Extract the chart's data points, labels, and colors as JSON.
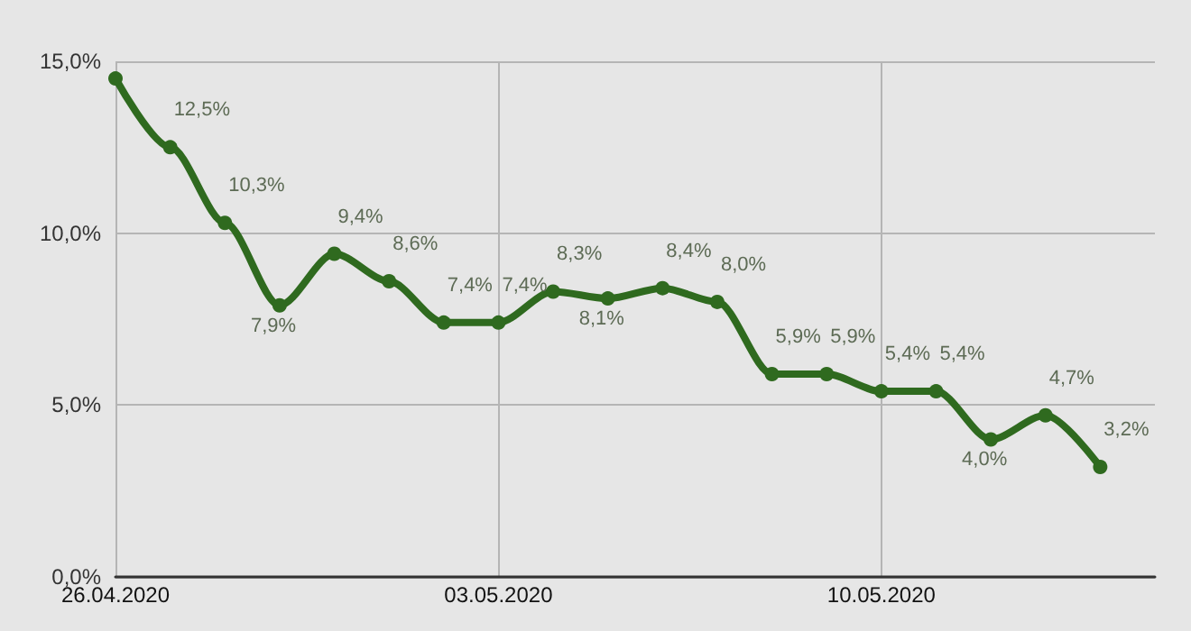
{
  "chart_data": {
    "type": "line",
    "x": [
      "2020-04-26",
      "2020-04-27",
      "2020-04-28",
      "2020-04-29",
      "2020-04-30",
      "2020-05-01",
      "2020-05-02",
      "2020-05-03",
      "2020-05-04",
      "2020-05-05",
      "2020-05-06",
      "2020-05-07",
      "2020-05-08",
      "2020-05-09",
      "2020-05-10",
      "2020-05-11",
      "2020-05-12",
      "2020-05-13",
      "2020-05-14"
    ],
    "series": [
      {
        "color": "#2f6a1f",
        "values": [
          14.5,
          12.5,
          10.3,
          7.9,
          9.4,
          8.6,
          7.4,
          7.4,
          8.3,
          8.1,
          8.4,
          8.0,
          5.9,
          5.9,
          5.4,
          5.4,
          4.0,
          4.7,
          3.2
        ],
        "value_labels": [
          null,
          "12,5%",
          "10,3%",
          "7,9%",
          "9,4%",
          "8,6%",
          "7,4%",
          "7,4%",
          "8,3%",
          "8,1%",
          "8,4%",
          "8,0%",
          "5,9%",
          "5,9%",
          "5,4%",
          "5,4%",
          "4,0%",
          "4,7%",
          "3,2%"
        ]
      }
    ],
    "xlim": [
      "2020-04-26",
      "2020-05-15"
    ],
    "xticks": [
      {
        "value": "2020-04-26",
        "label": "26.04.2020"
      },
      {
        "value": "2020-05-03",
        "label": "03.05.2020"
      },
      {
        "value": "2020-05-10",
        "label": "10.05.2020"
      }
    ],
    "ylim": [
      0,
      15
    ],
    "yticks": [
      {
        "value": 0,
        "label": "0,0%"
      },
      {
        "value": 5,
        "label": "5,0%"
      },
      {
        "value": 10,
        "label": "10,0%"
      },
      {
        "value": 15,
        "label": "15,0%"
      }
    ],
    "grid": true,
    "marker": "circle",
    "line_style": "solid"
  }
}
